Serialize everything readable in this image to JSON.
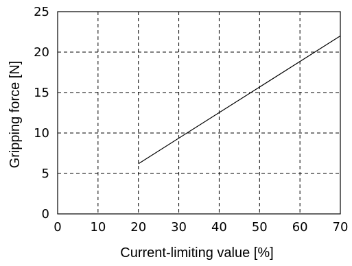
{
  "chart_data": {
    "type": "line",
    "title": "",
    "xlabel": "Current-limiting value [%]",
    "ylabel": "Gripping force [N]",
    "xlim": [
      0,
      70
    ],
    "ylim": [
      0,
      25
    ],
    "xticks": [
      "0",
      "10",
      "20",
      "30",
      "40",
      "50",
      "60",
      "70"
    ],
    "yticks": [
      "0",
      "5",
      "10",
      "15",
      "20",
      "25"
    ],
    "grid": true,
    "series": [
      {
        "x": [
          20,
          70
        ],
        "y": [
          6.2,
          22
        ],
        "color": "#000000"
      }
    ]
  }
}
